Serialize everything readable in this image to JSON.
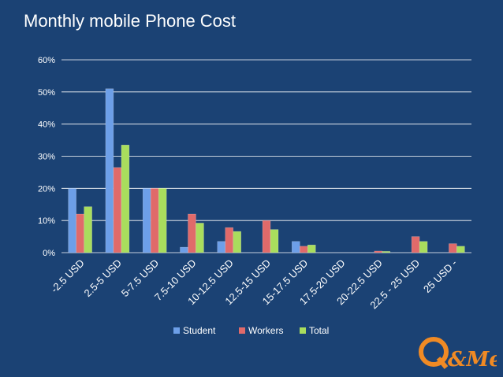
{
  "title": "Monthly mobile Phone Cost",
  "logo": {
    "text": "Q&Me"
  },
  "colors": {
    "background": "#1b4274",
    "Student": "#6d9fe8",
    "Workers": "#e06a6a",
    "Total": "#a9dd5d",
    "logo": "#f08a24"
  },
  "chart_data": {
    "type": "bar",
    "title": "Monthly mobile Phone Cost",
    "categories": [
      "-2.5 USD",
      "2.5-5 USD",
      "5-7.5 USD",
      "7.5-10 USD",
      "10-12.5 USD",
      "12.5-15 USD",
      "15-17.5 USD",
      "17.5-20 USD",
      "20-22.5 USD",
      "22.5 - 25 USD",
      "25 USD -"
    ],
    "series": [
      {
        "name": "Student",
        "values": [
          20,
          51,
          20,
          1.7,
          3.5,
          0,
          3.5,
          0,
          0,
          0,
          0
        ]
      },
      {
        "name": "Workers",
        "values": [
          12,
          26.5,
          20,
          12,
          7.8,
          10,
          2,
          0,
          0.5,
          5,
          2.8
        ]
      },
      {
        "name": "Total",
        "values": [
          14.3,
          33.5,
          20,
          9.2,
          6.6,
          7.2,
          2.4,
          0,
          0.4,
          3.5,
          2
        ]
      }
    ],
    "ylim": [
      0,
      60
    ],
    "yticks": [
      "0%",
      "10%",
      "20%",
      "30%",
      "40%",
      "50%",
      "60%"
    ],
    "grid": true,
    "legend_position": "bottom",
    "xlabel": "",
    "ylabel": ""
  }
}
